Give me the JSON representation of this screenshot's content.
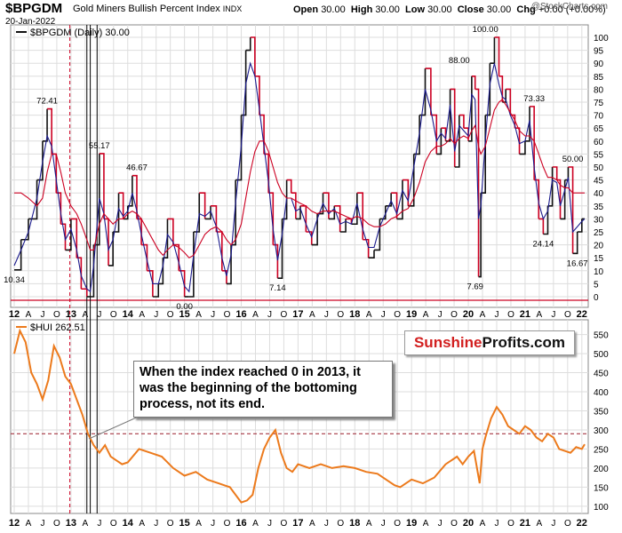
{
  "header": {
    "symbol": "$BPGDM",
    "title": "Gold Miners Bullish Percent Index",
    "index_label": "INDX",
    "date": "20-Jan-2022",
    "open_label": "Open",
    "open_value": "30.00",
    "high_label": "High",
    "high_value": "30.00",
    "low_label": "Low",
    "low_value": "30.00",
    "close_label": "Close",
    "close_value": "30.00",
    "chg_label": "Chg",
    "chg_value": "+0.00 (+0.00%)",
    "watermark": "@StockCharts.com"
  },
  "colors": {
    "up": "#111111",
    "down": "#cc0022",
    "ma_fast": "#1a1a8c",
    "ma_slow": "#cc0022",
    "hui": "#ec7a1c",
    "grid": "#dddddd",
    "axis": "#333333"
  },
  "callout": {
    "text": "When the index reached 0 in 2013, it was the beginning of the bottoming process, not its end."
  },
  "logo": {
    "part1": "Sunshine",
    "part2": "Profits.com"
  },
  "chart_data": [
    {
      "type": "line",
      "title": "$BPGDM (Daily) 30.00",
      "ylim": [
        0,
        100
      ],
      "yticks": [
        0,
        5,
        10,
        15,
        20,
        25,
        30,
        35,
        40,
        45,
        50,
        55,
        60,
        65,
        70,
        75,
        80,
        85,
        90,
        95,
        100
      ],
      "x_labels": [
        "12",
        "A",
        "J",
        "O",
        "13",
        "A",
        "J",
        "O",
        "14",
        "A",
        "J",
        "O",
        "15",
        "A",
        "J",
        "O",
        "16",
        "A",
        "J",
        "O",
        "17",
        "A",
        "J",
        "O",
        "18",
        "A",
        "J",
        "O",
        "19",
        "A",
        "J",
        "O",
        "20",
        "A",
        "J",
        "O",
        "21",
        "A",
        "J",
        "O",
        "22"
      ],
      "x_domain": [
        2012.0,
        2022.05
      ],
      "x": [
        2012.0,
        2012.12,
        2012.25,
        2012.4,
        2012.5,
        2012.58,
        2012.66,
        2012.74,
        2012.82,
        2012.9,
        2013.0,
        2013.1,
        2013.18,
        2013.28,
        2013.34,
        2013.4,
        2013.5,
        2013.58,
        2013.66,
        2013.74,
        2013.84,
        2013.92,
        2014.0,
        2014.08,
        2014.16,
        2014.24,
        2014.34,
        2014.44,
        2014.54,
        2014.62,
        2014.7,
        2014.8,
        2014.9,
        2015.0,
        2015.08,
        2015.16,
        2015.26,
        2015.36,
        2015.46,
        2015.56,
        2015.66,
        2015.74,
        2015.82,
        2015.9,
        2016.0,
        2016.08,
        2016.16,
        2016.24,
        2016.32,
        2016.4,
        2016.48,
        2016.56,
        2016.64,
        2016.72,
        2016.8,
        2016.88,
        2016.96,
        2017.04,
        2017.14,
        2017.24,
        2017.34,
        2017.44,
        2017.54,
        2017.64,
        2017.74,
        2017.84,
        2017.94,
        2018.04,
        2018.14,
        2018.24,
        2018.34,
        2018.44,
        2018.54,
        2018.64,
        2018.74,
        2018.84,
        2018.94,
        2019.04,
        2019.14,
        2019.24,
        2019.34,
        2019.44,
        2019.52,
        2019.6,
        2019.68,
        2019.76,
        2019.84,
        2019.92,
        2020.0,
        2020.06,
        2020.12,
        2020.18,
        2020.22,
        2020.3,
        2020.38,
        2020.46,
        2020.54,
        2020.6,
        2020.66,
        2020.74,
        2020.82,
        2020.9,
        2021.0,
        2021.08,
        2021.16,
        2021.24,
        2021.32,
        2021.4,
        2021.48,
        2021.56,
        2021.62,
        2021.7,
        2021.76,
        2021.84,
        2021.92,
        2022.0,
        2022.05
      ],
      "series": [
        {
          "name": "$BPGDM",
          "values": [
            10.34,
            22,
            30,
            45,
            60,
            72.41,
            55,
            40,
            28,
            18,
            30,
            15,
            3,
            0,
            0,
            20,
            55.17,
            30,
            12,
            25,
            40,
            30,
            35,
            46.67,
            30,
            20,
            10,
            0,
            5,
            15,
            30,
            20,
            10,
            0,
            0,
            25,
            40,
            30,
            35,
            25,
            10,
            5,
            20,
            45,
            70,
            95,
            100,
            85,
            70,
            55,
            40,
            20,
            7.14,
            30,
            45,
            40,
            30,
            35,
            25,
            20,
            32,
            40,
            30,
            35,
            25,
            30,
            28,
            40,
            22,
            15,
            18,
            30,
            35,
            40,
            30,
            45,
            35,
            55,
            70,
            88,
            70,
            55,
            65,
            60,
            80,
            50,
            70,
            65,
            60,
            85,
            80,
            7.69,
            40,
            70,
            90,
            100,
            85,
            75,
            80,
            70,
            65,
            55,
            60,
            73.33,
            45,
            30,
            24.14,
            35,
            50,
            45,
            30,
            45,
            50,
            16.67,
            25,
            30,
            30
          ]
        },
        {
          "name": "fast MA",
          "values": [
            12,
            18,
            25,
            38,
            52,
            62,
            58,
            45,
            32,
            22,
            26,
            18,
            8,
            3,
            2,
            12,
            38,
            32,
            18,
            22,
            34,
            31,
            33,
            40,
            33,
            24,
            14,
            5,
            5,
            12,
            24,
            21,
            13,
            4,
            2,
            16,
            32,
            31,
            33,
            27,
            15,
            8,
            16,
            36,
            58,
            82,
            90,
            85,
            72,
            58,
            44,
            26,
            14,
            24,
            38,
            38,
            33,
            34,
            28,
            23,
            30,
            36,
            32,
            34,
            28,
            29,
            28,
            36,
            26,
            19,
            19,
            27,
            32,
            37,
            32,
            41,
            37,
            50,
            63,
            80,
            72,
            60,
            63,
            61,
            74,
            56,
            66,
            64,
            62,
            78,
            76,
            30,
            35,
            60,
            82,
            90,
            82,
            77,
            76,
            70,
            66,
            59,
            60,
            68,
            50,
            36,
            30,
            33,
            45,
            44,
            35,
            41,
            46,
            25,
            27,
            29,
            30
          ]
        },
        {
          "name": "slow MA",
          "values": [
            40,
            40,
            38,
            35,
            38,
            48,
            55,
            55,
            48,
            40,
            35,
            32,
            28,
            22,
            18,
            18,
            28,
            32,
            30,
            28,
            30,
            30,
            32,
            33,
            32,
            30,
            26,
            22,
            18,
            16,
            18,
            20,
            19,
            17,
            15,
            16,
            20,
            24,
            26,
            27,
            25,
            22,
            20,
            22,
            28,
            38,
            48,
            56,
            60,
            60,
            56,
            50,
            44,
            40,
            38,
            38,
            37,
            36,
            35,
            33,
            32,
            33,
            33,
            33,
            32,
            31,
            30,
            31,
            30,
            28,
            27,
            27,
            28,
            30,
            31,
            33,
            34,
            38,
            44,
            52,
            56,
            58,
            58,
            59,
            61,
            59,
            61,
            62,
            61,
            64,
            66,
            58,
            55,
            58,
            65,
            72,
            75,
            76,
            74,
            71,
            68,
            64,
            62,
            62,
            60,
            55,
            50,
            46,
            46,
            45,
            43,
            42,
            42,
            40,
            40,
            40,
            40
          ]
        }
      ],
      "annotations": [
        {
          "x": 2012.0,
          "y": 10.34,
          "text": "10.34"
        },
        {
          "x": 2012.58,
          "y": 72.41,
          "text": "72.41"
        },
        {
          "x": 2013.5,
          "y": 55.17,
          "text": "55.17"
        },
        {
          "x": 2014.16,
          "y": 46.67,
          "text": "46.67"
        },
        {
          "x": 2015.0,
          "y": 0.0,
          "text": "0.00"
        },
        {
          "x": 2016.64,
          "y": 7.14,
          "text": "7.14"
        },
        {
          "x": 2020.12,
          "y": 7.69,
          "text": "7.69"
        },
        {
          "x": 2019.84,
          "y": 88.0,
          "text": "88.00"
        },
        {
          "x": 2020.3,
          "y": 100.0,
          "text": "100.00"
        },
        {
          "x": 2021.16,
          "y": 73.33,
          "text": "73.33"
        },
        {
          "x": 2021.32,
          "y": 24.14,
          "text": "24.14"
        },
        {
          "x": 2021.92,
          "y": 16.67,
          "text": "16.67"
        },
        {
          "x": 2021.84,
          "y": 50.0,
          "text": "50.00"
        }
      ]
    },
    {
      "type": "line",
      "title": "$HUI 262.51",
      "ylim": [
        95,
        570
      ],
      "yticks": [
        100,
        150,
        200,
        250,
        300,
        350,
        400,
        450,
        500,
        550
      ],
      "x_labels": [
        "12",
        "A",
        "J",
        "O",
        "13",
        "A",
        "J",
        "O",
        "14",
        "A",
        "J",
        "O",
        "15",
        "A",
        "J",
        "O",
        "16",
        "A",
        "J",
        "O",
        "17",
        "A",
        "J",
        "O",
        "18",
        "A",
        "J",
        "O",
        "19",
        "A",
        "J",
        "O",
        "20",
        "A",
        "J",
        "O",
        "21",
        "A",
        "J",
        "O",
        "22"
      ],
      "x_domain": [
        2012.0,
        2022.05
      ],
      "reference_line": 290,
      "x": [
        2012.0,
        2012.1,
        2012.2,
        2012.3,
        2012.4,
        2012.5,
        2012.6,
        2012.7,
        2012.8,
        2012.9,
        2013.0,
        2013.1,
        2013.2,
        2013.3,
        2013.4,
        2013.5,
        2013.6,
        2013.7,
        2013.8,
        2013.9,
        2014.0,
        2014.2,
        2014.4,
        2014.6,
        2014.8,
        2015.0,
        2015.2,
        2015.4,
        2015.6,
        2015.8,
        2016.0,
        2016.1,
        2016.2,
        2016.3,
        2016.4,
        2016.5,
        2016.6,
        2016.7,
        2016.8,
        2016.9,
        2017.0,
        2017.2,
        2017.4,
        2017.6,
        2017.8,
        2018.0,
        2018.2,
        2018.4,
        2018.6,
        2018.7,
        2018.8,
        2018.9,
        2019.0,
        2019.2,
        2019.4,
        2019.6,
        2019.8,
        2019.9,
        2020.0,
        2020.1,
        2020.2,
        2020.25,
        2020.3,
        2020.4,
        2020.5,
        2020.6,
        2020.7,
        2020.8,
        2020.9,
        2021.0,
        2021.1,
        2021.2,
        2021.3,
        2021.4,
        2021.5,
        2021.6,
        2021.7,
        2021.8,
        2021.9,
        2022.0,
        2022.05
      ],
      "series": [
        {
          "name": "$HUI",
          "values": [
            500,
            560,
            530,
            450,
            420,
            380,
            430,
            520,
            490,
            440,
            420,
            380,
            340,
            290,
            260,
            240,
            260,
            230,
            220,
            210,
            215,
            250,
            240,
            230,
            200,
            180,
            190,
            170,
            160,
            150,
            110,
            115,
            130,
            200,
            250,
            280,
            300,
            240,
            200,
            190,
            210,
            200,
            210,
            200,
            205,
            200,
            190,
            185,
            165,
            155,
            150,
            160,
            170,
            160,
            175,
            210,
            230,
            210,
            230,
            245,
            160,
            250,
            280,
            330,
            360,
            340,
            310,
            300,
            290,
            310,
            300,
            280,
            270,
            290,
            280,
            250,
            245,
            240,
            255,
            250,
            262.51
          ]
        }
      ]
    }
  ],
  "x_axis_labels": [
    "12",
    "A",
    "J",
    "O",
    "13",
    "A",
    "J",
    "O",
    "14",
    "A",
    "J",
    "O",
    "15",
    "A",
    "J",
    "O",
    "16",
    "A",
    "J",
    "O",
    "17",
    "A",
    "J",
    "O",
    "18",
    "A",
    "J",
    "O",
    "19",
    "A",
    "J",
    "O",
    "20",
    "A",
    "J",
    "O",
    "21",
    "A",
    "J",
    "O",
    "22"
  ]
}
